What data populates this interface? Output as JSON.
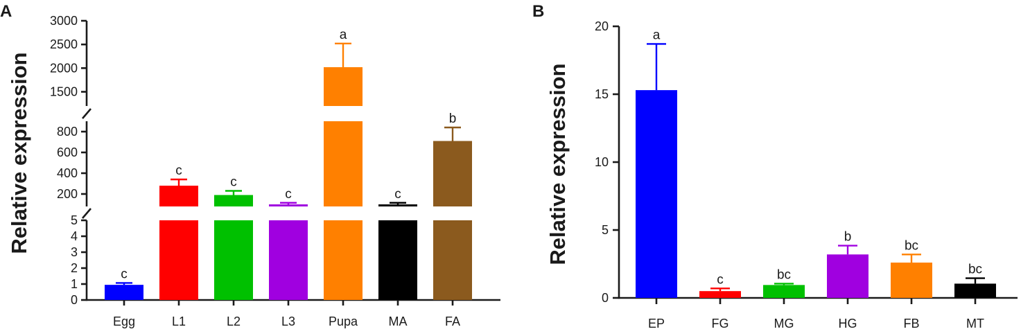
{
  "chart_data": [
    {
      "type": "bar",
      "panel_label": "A",
      "ylabel": "Relative expression",
      "xlabel": "",
      "categories": [
        "Egg",
        "L1",
        "L2",
        "L3",
        "Pupa",
        "MA",
        "FA"
      ],
      "values": [
        0.95,
        280,
        190,
        100,
        2020,
        100,
        710
      ],
      "errors": [
        0.12,
        60,
        40,
        15,
        500,
        15,
        130
      ],
      "colors": [
        "#0000ff",
        "#ff0000",
        "#00c000",
        "#a000e0",
        "#ff8000",
        "#000000",
        "#8b5a1e"
      ],
      "significance": [
        "c",
        "c",
        "c",
        "c",
        "a",
        "c",
        "b"
      ],
      "broken_axis": true,
      "segments": [
        {
          "range": [
            0,
            5
          ],
          "ticks": [
            0,
            1,
            2,
            3,
            4,
            5
          ]
        },
        {
          "range": [
            80,
            900
          ],
          "ticks": [
            200,
            400,
            600,
            800
          ]
        },
        {
          "range": [
            1200,
            3000
          ],
          "ticks": [
            1500,
            2000,
            2500,
            3000
          ]
        }
      ],
      "tick_labels": [
        "0",
        "1",
        "2",
        "3",
        "4",
        "5",
        "200",
        "400",
        "600",
        "800",
        "1500",
        "2000",
        "2500",
        "3000"
      ]
    },
    {
      "type": "bar",
      "panel_label": "B",
      "ylabel": "Relative expression",
      "xlabel": "",
      "categories": [
        "EP",
        "FG",
        "MG",
        "HG",
        "FB",
        "MT"
      ],
      "values": [
        15.3,
        0.5,
        0.95,
        3.2,
        2.6,
        1.05
      ],
      "errors": [
        3.4,
        0.2,
        0.1,
        0.65,
        0.6,
        0.4
      ],
      "colors": [
        "#0000ff",
        "#ff0000",
        "#00c000",
        "#a000e0",
        "#ff8000",
        "#000000"
      ],
      "significance": [
        "a",
        "c",
        "bc",
        "b",
        "bc",
        "bc"
      ],
      "ylim": [
        0,
        20
      ],
      "yticks": [
        0,
        5,
        10,
        15,
        20
      ],
      "tick_labels": [
        "0",
        "5",
        "10",
        "15",
        "20"
      ]
    }
  ]
}
